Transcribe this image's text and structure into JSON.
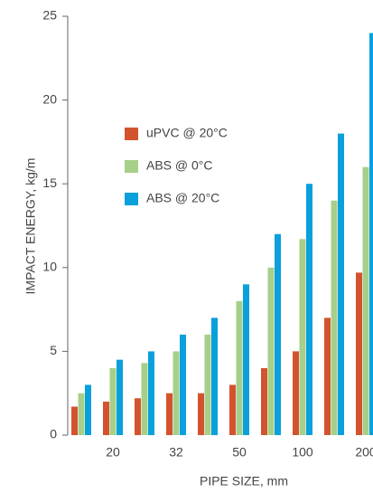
{
  "chart_data": {
    "type": "bar",
    "x_label": "PIPE SIZE, mm",
    "y_label": "IMPACT ENERGY, kg/m",
    "categories": [
      null,
      "20",
      null,
      "32",
      null,
      "50",
      null,
      "100",
      null,
      "200"
    ],
    "series": [
      {
        "name": "uPVC @ 20°C",
        "color": "#d4532f",
        "values": [
          1.7,
          2,
          2.2,
          2.5,
          2.5,
          3,
          4,
          5,
          7,
          9.7
        ]
      },
      {
        "name": "ABS @ 0°C",
        "color": "#a6cf8a",
        "values": [
          2.5,
          4,
          4.3,
          5,
          6,
          8,
          10,
          11.7,
          14,
          16
        ]
      },
      {
        "name": "ABS @ 20°C",
        "color": "#0aa0dc",
        "values": [
          3,
          4.5,
          5,
          6,
          7,
          9,
          12,
          15,
          18,
          24
        ]
      }
    ],
    "ylim": [
      0,
      25
    ],
    "yticks": [
      0,
      5,
      10,
      15,
      20,
      25
    ],
    "grid": false
  }
}
